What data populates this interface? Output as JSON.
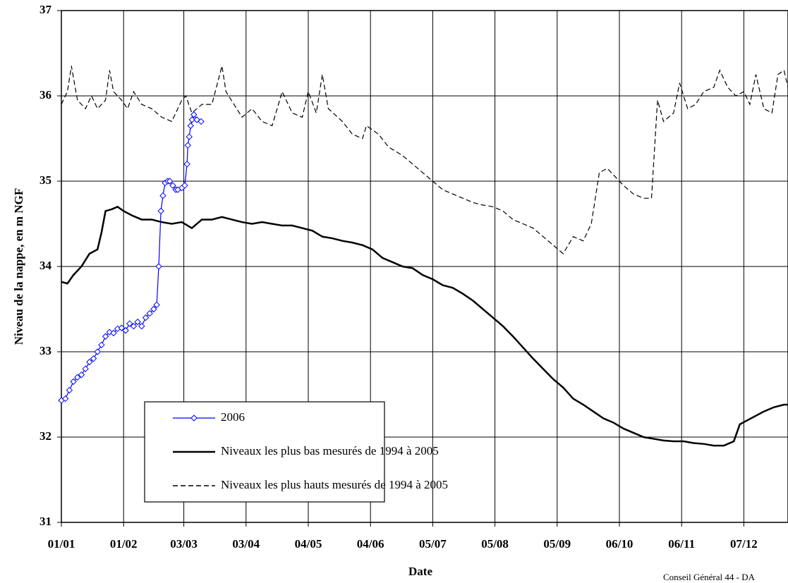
{
  "chart_data": {
    "type": "line",
    "x_label": "Date",
    "y_label": "Niveau de la nappe, en m NGF",
    "annotation": "Conseil Général 44 - DA",
    "xlim": [
      0,
      362
    ],
    "ylim": [
      31,
      37
    ],
    "yticks": [
      31,
      32,
      33,
      34,
      35,
      36,
      37
    ],
    "xticks": [
      {
        "value": 0,
        "label": "01/01"
      },
      {
        "value": 31,
        "label": "01/02"
      },
      {
        "value": 61,
        "label": "03/03"
      },
      {
        "value": 92,
        "label": "03/04"
      },
      {
        "value": 123,
        "label": "04/05"
      },
      {
        "value": 154,
        "label": "04/06"
      },
      {
        "value": 185,
        "label": "05/07"
      },
      {
        "value": 216,
        "label": "05/08"
      },
      {
        "value": 247,
        "label": "05/09"
      },
      {
        "value": 278,
        "label": "06/10"
      },
      {
        "value": 309,
        "label": "06/11"
      },
      {
        "value": 340,
        "label": "07/12"
      }
    ],
    "grid": true,
    "legend": "lower left",
    "series": [
      {
        "name": "2006",
        "color": "#0000ff",
        "style": "solid",
        "marker": "diamond",
        "x": [
          0,
          2,
          4,
          6,
          8,
          10,
          12,
          14,
          16,
          18,
          20,
          22,
          24,
          26,
          28,
          30,
          32,
          34,
          36,
          38,
          40,
          42,
          44,
          46,
          47.5,
          48.5,
          49.6,
          50.6,
          51.7,
          53,
          54,
          55.5,
          57,
          58,
          60,
          61.5,
          62.6,
          63,
          63.7,
          64.4,
          65.1,
          66,
          67.5,
          69.6
        ],
        "values": [
          32.43,
          32.45,
          32.55,
          32.65,
          32.7,
          32.73,
          32.8,
          32.88,
          32.92,
          33.0,
          33.08,
          33.18,
          33.23,
          33.22,
          33.27,
          33.28,
          33.25,
          33.33,
          33.3,
          33.35,
          33.3,
          33.4,
          33.45,
          33.5,
          33.55,
          34.0,
          34.65,
          34.83,
          34.98,
          35.0,
          35.0,
          34.95,
          34.9,
          34.9,
          34.92,
          34.95,
          35.2,
          35.42,
          35.52,
          35.65,
          35.72,
          35.78,
          35.72,
          35.7
        ]
      },
      {
        "name": "Niveaux les plus bas mesurés de 1994 à 2005",
        "color": "#000000",
        "style": "solid",
        "x": [
          0,
          3,
          6,
          10,
          14,
          18,
          20,
          22,
          25,
          28,
          31,
          35,
          40,
          45,
          50,
          55,
          60,
          65,
          70,
          75,
          80,
          85,
          90,
          95,
          100,
          105,
          110,
          115,
          120,
          125,
          130,
          135,
          140,
          145,
          150,
          155,
          160,
          165,
          170,
          175,
          180,
          185,
          190,
          195,
          200,
          205,
          210,
          215,
          220,
          225,
          230,
          235,
          240,
          245,
          250,
          255,
          260,
          265,
          270,
          275,
          280,
          285,
          290,
          295,
          300,
          305,
          310,
          315,
          320,
          325,
          330,
          335,
          338,
          342,
          346,
          350,
          355,
          360,
          362
        ],
        "values": [
          33.82,
          33.8,
          33.9,
          34.0,
          34.15,
          34.2,
          34.4,
          34.65,
          34.67,
          34.7,
          34.65,
          34.6,
          34.55,
          34.55,
          34.52,
          34.5,
          34.52,
          34.45,
          34.55,
          34.55,
          34.58,
          34.55,
          34.52,
          34.5,
          34.52,
          34.5,
          34.48,
          34.48,
          34.45,
          34.42,
          34.35,
          34.33,
          34.3,
          34.28,
          34.25,
          34.2,
          34.1,
          34.05,
          34.0,
          33.98,
          33.9,
          33.85,
          33.78,
          33.75,
          33.68,
          33.6,
          33.5,
          33.4,
          33.3,
          33.18,
          33.05,
          32.92,
          32.8,
          32.68,
          32.58,
          32.45,
          32.38,
          32.3,
          32.22,
          32.17,
          32.1,
          32.05,
          32.0,
          31.98,
          31.96,
          31.95,
          31.95,
          31.93,
          31.92,
          31.9,
          31.9,
          31.95,
          32.15,
          32.2,
          32.25,
          32.3,
          32.35,
          32.38,
          32.38
        ]
      },
      {
        "name": "Niveaux les plus hauts mesurés de 1994 à 2005",
        "color": "#000000",
        "style": "dashed",
        "x": [
          0,
          3,
          5,
          8,
          12,
          15,
          18,
          22,
          24,
          26,
          30,
          33,
          36,
          40,
          45,
          50,
          55,
          60,
          62,
          65,
          70,
          75,
          80,
          82,
          86,
          90,
          95,
          100,
          105,
          110,
          115,
          120,
          123,
          127,
          130,
          133,
          140,
          145,
          150,
          152,
          158,
          163,
          170,
          175,
          180,
          185,
          190,
          195,
          200,
          205,
          210,
          215,
          220,
          225,
          230,
          235,
          240,
          245,
          250,
          255,
          260,
          264,
          268,
          272,
          276,
          280,
          285,
          290,
          294,
          297,
          300,
          305,
          308,
          312,
          316,
          320,
          325,
          328,
          332,
          336,
          340,
          343,
          346,
          350,
          354,
          357,
          360,
          362
        ],
        "values": [
          35.9,
          36.05,
          36.35,
          35.95,
          35.85,
          36.0,
          35.85,
          35.95,
          36.3,
          36.05,
          35.95,
          35.85,
          36.05,
          35.9,
          35.85,
          35.75,
          35.7,
          35.95,
          36.0,
          35.8,
          35.9,
          35.9,
          36.35,
          36.05,
          35.9,
          35.75,
          35.85,
          35.7,
          35.65,
          36.05,
          35.8,
          35.75,
          36.05,
          35.8,
          36.25,
          35.85,
          35.7,
          35.55,
          35.5,
          35.65,
          35.55,
          35.4,
          35.3,
          35.2,
          35.1,
          35.0,
          34.9,
          34.85,
          34.8,
          34.75,
          34.72,
          34.7,
          34.65,
          34.55,
          34.5,
          34.45,
          34.35,
          34.25,
          34.15,
          34.35,
          34.3,
          34.5,
          35.1,
          35.15,
          35.05,
          34.95,
          34.85,
          34.8,
          34.8,
          35.95,
          35.7,
          35.8,
          36.15,
          35.85,
          35.9,
          36.05,
          36.1,
          36.3,
          36.1,
          36.0,
          36.05,
          35.9,
          36.25,
          35.85,
          35.8,
          36.25,
          36.3,
          36.1
        ]
      }
    ]
  }
}
